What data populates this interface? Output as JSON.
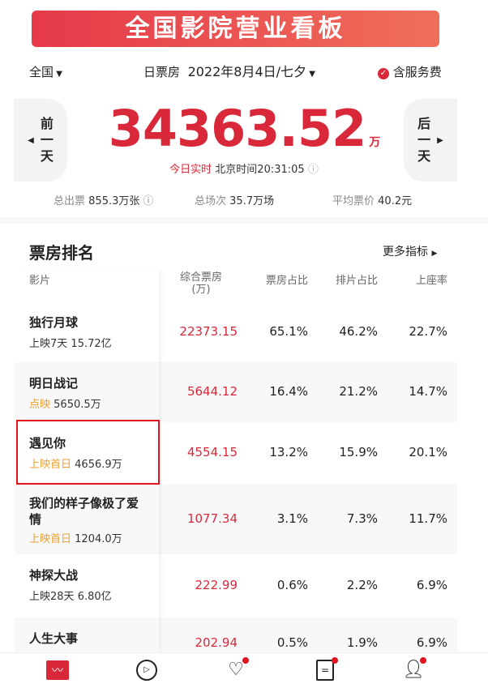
{
  "banner": {
    "title": "全国影院营业看板"
  },
  "header": {
    "region": "全国",
    "label": "日票房",
    "date": "2022年8月4日/七夕",
    "service_fee": "含服务费"
  },
  "summary": {
    "prev": [
      "前",
      "一",
      "天"
    ],
    "next": [
      "后",
      "一",
      "天"
    ],
    "total": "34363.52",
    "unit": "万",
    "realtime": "今日实时",
    "time": "北京时间20:31:05",
    "tickets_label": "总出票",
    "tickets": "855.3万张",
    "shows_label": "总场次",
    "shows": "35.7万场",
    "price_label": "平均票价",
    "price": "40.2元"
  },
  "ranking": {
    "title": "票房排名",
    "more": "更多指标",
    "columns": [
      "影片",
      "综合票房\n(万)",
      "票房占比",
      "排片占比",
      "上座率"
    ],
    "rows": [
      {
        "name": "独行月球",
        "status": "上映7天",
        "total": "15.72亿",
        "box": "22373.15",
        "share": "65.1%",
        "sched": "46.2%",
        "occ": "22.7%",
        "orange": false
      },
      {
        "name": "明日战记",
        "status": "点映",
        "total": "5650.5万",
        "box": "5644.12",
        "share": "16.4%",
        "sched": "21.2%",
        "occ": "14.7%",
        "orange": true
      },
      {
        "name": "遇见你",
        "status": "上映首日",
        "total": "4656.9万",
        "box": "4554.15",
        "share": "13.2%",
        "sched": "15.9%",
        "occ": "20.1%",
        "orange": true
      },
      {
        "name": "我们的样子像极了爱情",
        "status": "上映首日",
        "total": "1204.0万",
        "box": "1077.34",
        "share": "3.1%",
        "sched": "7.3%",
        "occ": "11.7%",
        "orange": true
      },
      {
        "name": "神探大战",
        "status": "上映28天",
        "total": "6.80亿",
        "box": "222.99",
        "share": "0.6%",
        "sched": "2.2%",
        "occ": "6.9%",
        "orange": false
      },
      {
        "name": "人生大事",
        "status": "",
        "total": "",
        "box": "202.94",
        "share": "0.5%",
        "sched": "1.9%",
        "occ": "6.9%",
        "orange": false
      }
    ]
  },
  "colors": {
    "accent": "#d8283a",
    "orange": "#e8a23a"
  },
  "tabs": [
    "chart-icon",
    "play-icon",
    "heart-check-icon",
    "document-icon",
    "user-icon"
  ]
}
